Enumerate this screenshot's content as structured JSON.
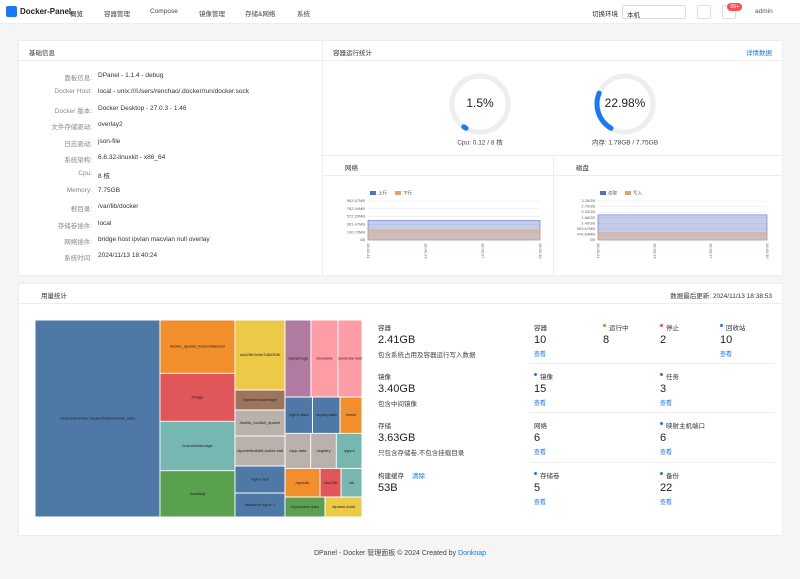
{
  "nav": {
    "logo": "Docker-Panel",
    "menu": [
      "概览",
      "容器管理",
      "Compose",
      "镜像管理",
      "存储&网络",
      "系统"
    ],
    "env_label": "切换环境",
    "env_value": "本机",
    "badge": "99+",
    "user": "admin"
  },
  "basic_info": {
    "title": "基础信息",
    "rows": [
      {
        "key": "面板信息:",
        "value": "DPanel - 1.1.4 - debug"
      },
      {
        "key": "Docker Host:",
        "value": "local - unix:///Users/renchao/.docker/run/docker.sock"
      },
      {
        "key": "Docker 版本:",
        "value": "Docker Desktop - 27.0.3 - 1.46"
      },
      {
        "key": "文件存储驱动:",
        "value": "overlay2"
      },
      {
        "key": "日志驱动:",
        "value": "json-file"
      },
      {
        "key": "系统架构:",
        "value": "6.6.32-linuxkit - x86_64"
      },
      {
        "key": "Cpu:",
        "value": "8 核"
      },
      {
        "key": "Memory:",
        "value": "7.75GB"
      },
      {
        "key": "根目录:",
        "value": "/var/lib/docker"
      },
      {
        "key": "存储卷插件:",
        "value": "local"
      },
      {
        "key": "网络插件:",
        "value": "bridge host ipvlan macvlan null overlay"
      },
      {
        "key": "系统时间:",
        "value": "2024/11/13 18:40:24"
      }
    ]
  },
  "container_stats": {
    "title": "容器运行统计",
    "link": "详情数据",
    "gauges": [
      {
        "value": 1.5,
        "label": "1.5%",
        "caption": "Cpu: 0.12 / 8 核",
        "color": "#1677ff"
      },
      {
        "value": 22.98,
        "label": "22.98%",
        "caption": "内存: 1.78GB / 7.75GB",
        "color": "#1677ff"
      }
    ],
    "network_chart": {
      "type": "area",
      "title": "网络",
      "categories": [
        "18:40:21",
        "18:40:24",
        "18:40:27",
        "18:40:30"
      ],
      "series": [
        {
          "name": "上行",
          "color": "#5470c6",
          "values": [
            480,
            480,
            480,
            480
          ]
        },
        {
          "name": "下行",
          "color": "#e6a06a",
          "values": [
            240,
            240,
            240,
            240
          ]
        }
      ],
      "ylim": [
        0,
        953.67
      ],
      "yticks": [
        {
          "value": 0,
          "label": "0B"
        },
        {
          "value": 190.73,
          "label": "190.73MB"
        },
        {
          "value": 381.47,
          "label": "381.47MB"
        },
        {
          "value": 572.2,
          "label": "572.20MB"
        },
        {
          "value": 762.94,
          "label": "762.94MB"
        },
        {
          "value": 953.67,
          "label": "953.67MB"
        }
      ],
      "grid": true
    },
    "disk_chart": {
      "type": "area",
      "title": "磁盘",
      "categories": [
        "18:40:21",
        "18:40:24",
        "18:40:27",
        "18:40:30"
      ],
      "series": [
        {
          "name": "读取",
          "color": "#5470c6",
          "values": [
            2.1,
            2.1,
            2.1,
            2.1
          ]
        },
        {
          "name": "写入",
          "color": "#e6a06a",
          "values": [
            0.6,
            0.6,
            0.6,
            0.6
          ]
        }
      ],
      "ylim": [
        0,
        3.26
      ],
      "yticks": [
        {
          "value": 0,
          "label": "0B"
        },
        {
          "value": 0.4657,
          "label": "476.84MB"
        },
        {
          "value": 0.9313,
          "label": "953.67MB"
        },
        {
          "value": 1.4,
          "label": "1.40GB"
        },
        {
          "value": 1.86,
          "label": "1.86GB"
        },
        {
          "value": 2.33,
          "label": "2.33GB"
        },
        {
          "value": 2.79,
          "label": "2.79GB"
        },
        {
          "value": 3.26,
          "label": "3.26GB"
        }
      ],
      "grid": true
    }
  },
  "usage": {
    "title": "用量统计",
    "updated": "数据最后更新: 2024/11/13 18:38:53",
    "treemap": {
      "columns": [
        {
          "rows": [
            {
              "leaves": [
                {
                  "name": "/Users/renchao/.docker/buildx/buildx_data",
                  "value": 24600,
                  "color": "#4e79a7"
                }
              ]
            }
          ]
        },
        {
          "rows": [
            {
              "leaves": [
                {
                  "name": "docker_dpanel_live/containers/",
                  "value": 4000,
                  "color": "#f28e2b"
                }
              ]
            },
            {
              "leaves": [
                {
                  "name": "/image",
                  "value": 3600,
                  "color": "#e15759"
                }
              ]
            },
            {
              "leaves": [
                {
                  "name": "/volumes/storage",
                  "value": 3700,
                  "color": "#76b7b2"
                }
              ]
            },
            {
              "leaves": [
                {
                  "name": "/local/sql",
                  "value": 3475,
                  "color": "#59a14f"
                }
              ]
            }
          ]
        },
        {
          "rows": [
            {
              "leaves": [
                {
                  "name": "sha256:9d4e7d8430f6",
                  "value": 3500,
                  "color": "#edc948"
                }
              ]
            },
            {
              "leaves": [
                {
                  "name": "/dpanel/easyimage",
                  "value": 1000,
                  "color": "#9c755f"
                }
              ]
            },
            {
              "leaves": [
                {
                  "name": "/builds_buildkit_dpanel",
                  "value": 1300,
                  "color": "#bab0ac"
                }
              ]
            },
            {
              "leaves": [
                {
                  "name": "/dpanel/buildkit-buildx-stat",
                  "value": 1500,
                  "color": "#bab0ac"
                }
              ]
            },
            {
              "leaves": [
                {
                  "name": "/nginx-test",
                  "value": 1350,
                  "color": "#4e79a7"
                }
              ]
            },
            {
              "leaves": [
                {
                  "name": "/backend nginx-1",
                  "value": 1200,
                  "color": "#4e79a7"
                }
              ]
            }
          ]
        },
        {
          "rows": [
            {
              "leaves": [
                {
                  "name": "/easyimage",
                  "value": 2000,
                  "color": "#b07aa1"
                },
                {
                  "name": "/pvolume",
                  "value": 2080,
                  "color": "#ff9da7"
                },
                {
                  "name": "/pvolume-test",
                  "value": 1850,
                  "color": "#ff9da7"
                }
              ]
            },
            {
              "leaves": [
                {
                  "name": "/nginx-data",
                  "value": 1000,
                  "color": "#4e79a7"
                },
                {
                  "name": "/mysql-data",
                  "value": 1000,
                  "color": "#4e79a7"
                },
                {
                  "name": "/kmce",
                  "value": 800,
                  "color": "#f28e2b"
                }
              ]
            },
            {
              "leaves": [
                {
                  "name": "/app-data",
                  "value": 900,
                  "color": "#bab0ac"
                },
                {
                  "name": "/registry",
                  "value": 900,
                  "color": "#bab0ac"
                },
                {
                  "name": "/pgvol",
                  "value": 900,
                  "color": "#76b7b2"
                }
              ]
            },
            {
              "leaves": [
                {
                  "name": "/syncdb",
                  "value": 1000,
                  "color": "#f28e2b"
                },
                {
                  "name": "sha256",
                  "value": 600,
                  "color": "#e15759"
                },
                {
                  "name": "/db",
                  "value": 600,
                  "color": "#76b7b2"
                }
              ]
            },
            {
              "leaves": [
                {
                  "name": "/hpvolume-data",
                  "value": 800,
                  "color": "#59a14f"
                },
                {
                  "name": "/dpanel-build",
                  "value": 740,
                  "color": "#edc948"
                }
              ]
            }
          ]
        }
      ]
    },
    "stats": [
      {
        "title": "容器",
        "size": "2.41GB",
        "desc": "包含系统占用及容器运行写入数据",
        "items": [
          {
            "label": "容器",
            "value": "10",
            "link": "查看"
          },
          {
            "label": "运行中",
            "value": "8",
            "dot": "#52c41a"
          },
          {
            "label": "停止",
            "value": "2",
            "dot": "#ff4d4f"
          },
          {
            "label": "回收站",
            "value": "10",
            "link": "查看",
            "dot": "#1677ff"
          }
        ]
      },
      {
        "title": "镜像",
        "size": "3.40GB",
        "desc": "包含中间镜像",
        "items": [
          {
            "label": "镜像",
            "value": "15",
            "link": "查看",
            "dot": "#1677ff"
          },
          {
            "label": "任务",
            "value": "3",
            "link": "查看",
            "dot": "#1677ff"
          }
        ]
      },
      {
        "title": "存储",
        "size": "3.63GB",
        "desc": "只包含存储卷,不包含挂载目录",
        "items": [
          {
            "label": "网络",
            "value": "6",
            "link": "查看"
          },
          {
            "label": "映射主机端口",
            "value": "6",
            "link": "查看",
            "dot": "#1677ff"
          }
        ]
      },
      {
        "title": "构建缓存",
        "action": "清除",
        "size": "53B",
        "items": [
          {
            "label": "存储卷",
            "value": "5",
            "link": "查看",
            "dot": "#1677ff"
          },
          {
            "label": "备份",
            "value": "22",
            "link": "查看",
            "dot": "#1677ff"
          }
        ]
      }
    ]
  },
  "footer": {
    "text": "DPanel - Docker 管理面板 © 2024 Created by",
    "link": "Donknap"
  }
}
